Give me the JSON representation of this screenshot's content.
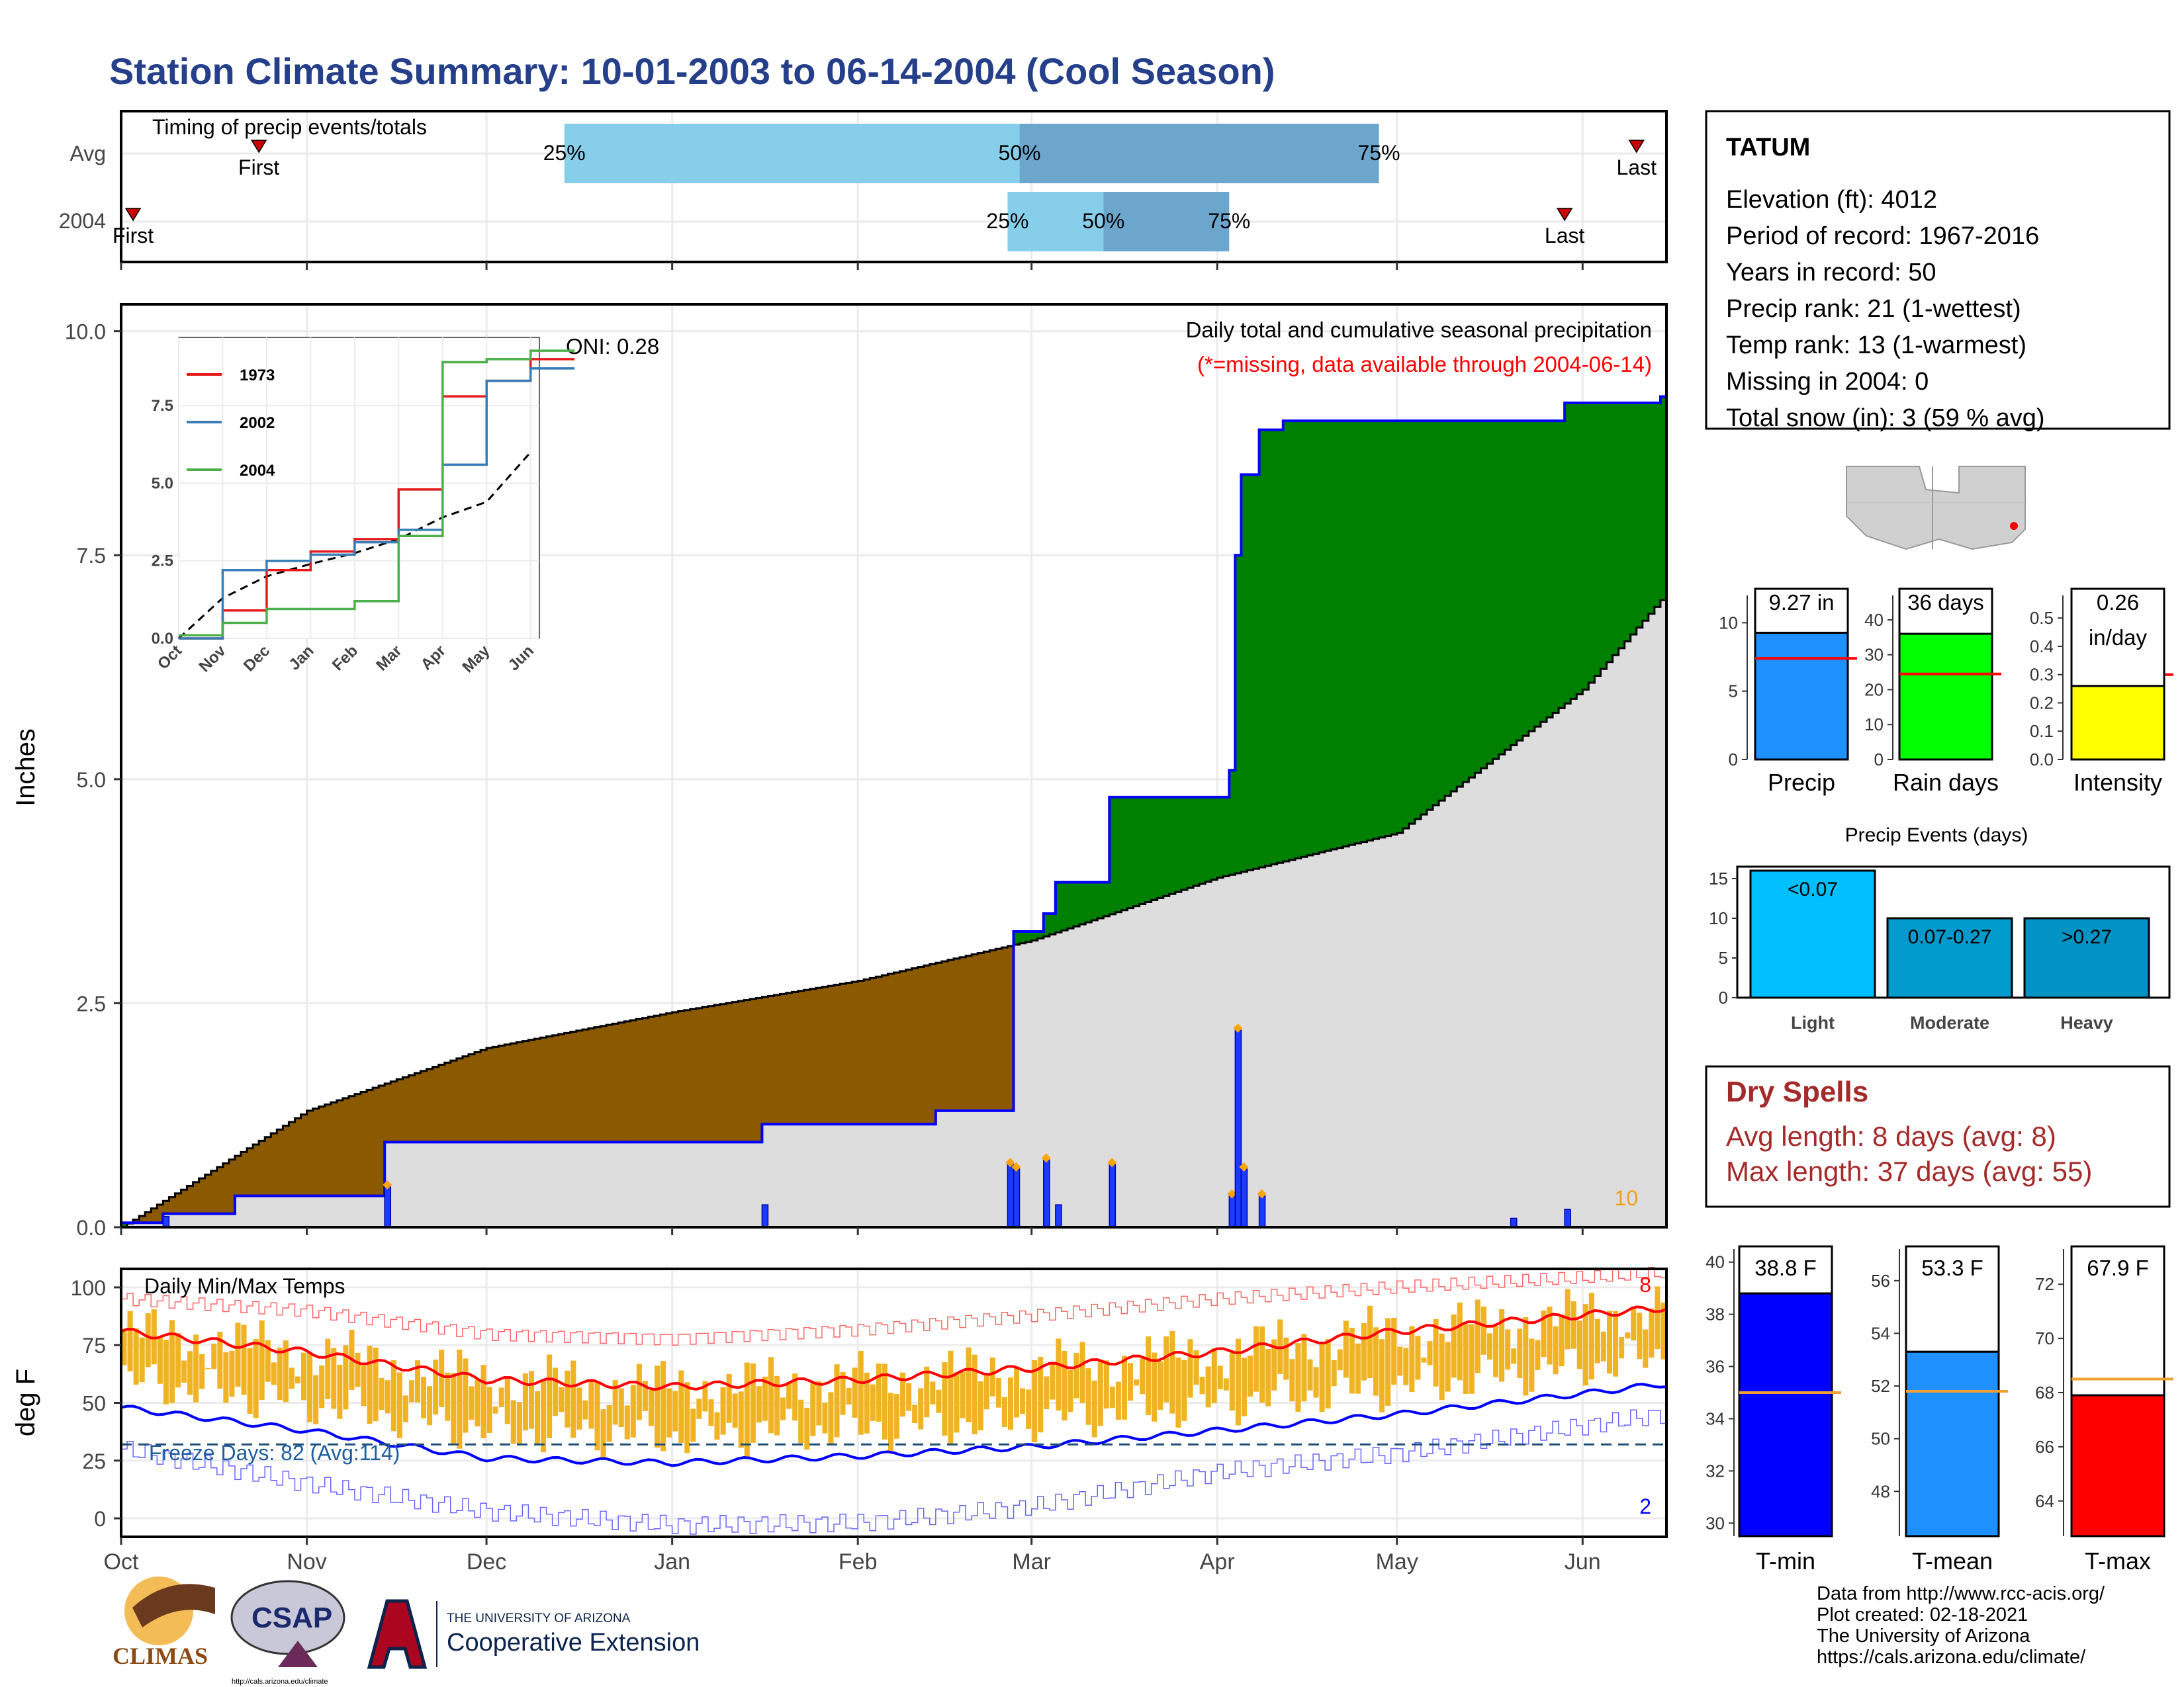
{
  "title": "Station Climate Summary: 10-01-2003 to 06-14-2004 (Cool Season)",
  "colors": {
    "title": "#253f8a",
    "green": "#008000",
    "brown": "#8b5a00",
    "grey": "#dddddd",
    "blueline": "#0000ff",
    "orange": "#f0b323",
    "red": "#ff0000"
  },
  "timing": {
    "label": "Timing of precip events/totals",
    "rows": [
      "Avg",
      "2004"
    ],
    "avg": {
      "first_label": "First",
      "last_label": "Last",
      "first": "Oct 24",
      "p25": "Dec 14",
      "p50": "Feb 28",
      "p75": "Apr 28",
      "last": "Jun 10"
    },
    "year": {
      "first_label": "First",
      "last_label": "Last",
      "first": "Oct 3",
      "p25": "Feb 26",
      "p50": "Mar 13",
      "p75": "Apr 3",
      "last": "May 29"
    },
    "pct_labels": [
      "25%",
      "50%",
      "75%"
    ]
  },
  "main": {
    "ylabel": "Inches",
    "header": "Daily total and cumulative seasonal precipitation",
    "missing_note": "(*=missing, data available through 2004-06-14)",
    "oni": "ONI: 0.28",
    "corner_count": "10",
    "month_ticks": [
      "Oct",
      "Nov",
      "Dec",
      "Jan",
      "Feb",
      "Mar",
      "Apr",
      "May",
      "Jun"
    ],
    "y_ticks": [
      "0.0",
      "2.5",
      "5.0",
      "7.5",
      "10.0"
    ]
  },
  "inset": {
    "legend": [
      {
        "name": "1973",
        "color": "#e41a1c"
      },
      {
        "name": "2002",
        "color": "#377eb8"
      },
      {
        "name": "2004",
        "color": "#4daf4a"
      }
    ],
    "y_ticks": [
      "0.0",
      "2.5",
      "5.0",
      "7.5"
    ],
    "x_ticks": [
      "Oct",
      "Nov",
      "Dec",
      "Jan",
      "Feb",
      "Mar",
      "Apr",
      "May",
      "Jun"
    ]
  },
  "temps": {
    "label": "Daily Min/Max Temps",
    "ylabel": "deg F",
    "freeze_label": "Freeze Days: 82 (Avg:114)",
    "freeze_value": 32,
    "max_count": "8",
    "min_count": "2",
    "y_ticks": [
      "0",
      "25",
      "50",
      "75",
      "100"
    ]
  },
  "station": {
    "name": "TATUM",
    "elevation": "Elevation (ft): 4012",
    "period": "Period of record: 1967-2016",
    "years": "Years in record: 50",
    "precip_rank": "Precip rank: 21 (1-wettest)",
    "temp_rank": "Temp rank: 13 (1-warmest)",
    "missing": "Missing in 2004: 0",
    "snow": "Total snow (in): 3 (59 % avg)"
  },
  "mini_bars": [
    {
      "label": "Precip",
      "value_text": "9.27 in",
      "value": 9.27,
      "avg": 7.4,
      "color": "#1e90ff",
      "ymax": 12,
      "ticks": [
        0,
        5,
        10
      ]
    },
    {
      "label": "Rain days",
      "value_text": "36 days",
      "value": 36,
      "avg": 24.5,
      "color": "#00ff00",
      "ymax": 47,
      "ticks": [
        0,
        10,
        20,
        30,
        40
      ]
    },
    {
      "label": "Intensity",
      "value_text": "0.26",
      "value_text2": "in/day",
      "value": 0.26,
      "avg": 0.3,
      "color": "#ffff00",
      "ymax": 0.58,
      "ticks": [
        0.0,
        0.1,
        0.2,
        0.3,
        0.4,
        0.5
      ]
    }
  ],
  "events": {
    "title": "Precip Events (days)",
    "bars": [
      {
        "label": "Light",
        "range": "<0.07",
        "value": 16,
        "color": "#00bfff"
      },
      {
        "label": "Moderate",
        "range": "0.07-0.27",
        "value": 10,
        "color": "#009acd"
      },
      {
        "label": "Heavy",
        "range": ">0.27",
        "value": 10,
        "color": "#0093c4"
      }
    ],
    "ticks": [
      0,
      5,
      10,
      15
    ]
  },
  "dry": {
    "title": "Dry Spells",
    "avg_line": "Avg length: 8 days (avg: 8)",
    "max_line": "Max length: 37 days (avg: 55)"
  },
  "temp_bars": [
    {
      "label": "T-min",
      "value_text": "38.8 F",
      "value": 38.8,
      "avg": 35,
      "color": "#0000ff",
      "ymin": 29.5,
      "ymax": 40.5,
      "ticks": [
        30,
        32,
        34,
        36,
        38,
        40
      ]
    },
    {
      "label": "T-mean",
      "value_text": "53.3 F",
      "value": 53.3,
      "avg": 51.8,
      "color": "#1e90ff",
      "ymin": 46.3,
      "ymax": 57.2,
      "ticks": [
        48,
        50,
        52,
        54,
        56
      ]
    },
    {
      "label": "T-max",
      "value_text": "67.9 F",
      "value": 67.9,
      "avg": 68.5,
      "color": "#ff0000",
      "ymin": 62.7,
      "ymax": 73.3,
      "ticks": [
        64,
        66,
        68,
        70,
        72
      ]
    }
  ],
  "credits": [
    "Data from http://www.rcc-acis.org/",
    "Plot created: 02-18-2021",
    "The University of Arizona",
    "https://cals.arizona.edu/climate/"
  ],
  "logos": {
    "climas": "CLIMAS",
    "csap": "CSAP",
    "csap_url": "http://cals.arizona.edu/climate",
    "ua_top": "THE UNIVERSITY OF ARIZONA",
    "ua_bottom": "Cooperative Extension"
  },
  "chart_data": [
    {
      "type": "area",
      "title": "Daily total and cumulative seasonal precipitation",
      "ylabel": "Inches",
      "ylim": [
        0,
        10.0
      ],
      "xlim": [
        "Oct 1",
        "Jun 14"
      ],
      "series": [
        {
          "name": "2004 cumulative",
          "x": [
            "Oct 1",
            "Oct 8",
            "Oct 20",
            "Nov 14",
            "Jan 16",
            "Feb 14",
            "Feb 27",
            "Mar 3",
            "Mar 5",
            "Mar 14",
            "Apr 3",
            "Apr 4",
            "Apr 5",
            "Apr 8",
            "Apr 12",
            "May 20",
            "May 29",
            "Jun 14"
          ],
          "y": [
            0.05,
            0.15,
            0.35,
            0.95,
            1.15,
            1.3,
            3.3,
            3.5,
            3.85,
            4.8,
            5.1,
            7.5,
            8.4,
            8.9,
            9.0,
            9.0,
            9.2,
            9.27
          ]
        },
        {
          "name": "Average cumulative",
          "x": [
            "Oct 1",
            "Nov 1",
            "Dec 1",
            "Jan 1",
            "Feb 1",
            "Mar 1",
            "Apr 1",
            "May 1",
            "Jun 1",
            "Jun 14"
          ],
          "y": [
            0.0,
            1.3,
            2.0,
            2.4,
            2.75,
            3.2,
            3.9,
            4.4,
            6.0,
            7.0
          ]
        }
      ]
    },
    {
      "type": "bar",
      "title": "Daily precipitation",
      "x": [
        "Oct 8",
        "Nov 14",
        "Jan 16",
        "Feb 26",
        "Feb 27",
        "Mar 3",
        "Mar 5",
        "Mar 14",
        "Apr 3",
        "Apr 4",
        "Apr 5",
        "Apr 8",
        "May 20",
        "May 29"
      ],
      "values": [
        0.12,
        0.45,
        0.25,
        0.7,
        0.65,
        0.75,
        0.25,
        0.7,
        0.35,
        2.2,
        0.65,
        0.35,
        0.1,
        0.2
      ]
    },
    {
      "type": "line",
      "title": "Daily Min/Max Temps",
      "ylabel": "deg F",
      "ylim": [
        -8,
        108
      ],
      "series": [
        {
          "name": "Normal max",
          "x": [
            "Oct 1",
            "Nov 1",
            "Dec 1",
            "Jan 1",
            "Feb 1",
            "Mar 1",
            "Apr 1",
            "May 1",
            "Jun 1",
            "Jun 14"
          ],
          "y": [
            81,
            72,
            60,
            57,
            60,
            65,
            72,
            81,
            88,
            91
          ]
        },
        {
          "name": "Normal min",
          "x": [
            "Oct 1",
            "Nov 1",
            "Dec 1",
            "Jan 1",
            "Feb 1",
            "Mar 1",
            "Apr 1",
            "May 1",
            "Jun 1",
            "Jun 14"
          ],
          "y": [
            48,
            38,
            26,
            24,
            27,
            31,
            38,
            45,
            54,
            58
          ]
        },
        {
          "name": "Record max",
          "x": [
            "Oct 1",
            "Nov 1",
            "Dec 1",
            "Jan 1",
            "Feb 1",
            "Mar 1",
            "Apr 1",
            "May 1",
            "Jun 1",
            "Jun 14"
          ],
          "y": [
            95,
            90,
            80,
            78,
            82,
            88,
            95,
            100,
            104,
            106
          ]
        },
        {
          "name": "Record min",
          "x": [
            "Oct 1",
            "Nov 1",
            "Dec 1",
            "Jan 1",
            "Feb 1",
            "Mar 1",
            "Apr 1",
            "May 1",
            "Jun 1",
            "Jun 14"
          ],
          "y": [
            30,
            15,
            3,
            -3,
            -2,
            5,
            20,
            28,
            40,
            45
          ]
        }
      ]
    },
    {
      "type": "line",
      "title": "",
      "series": [
        {
          "name": "1973",
          "x": [
            "Oct",
            "Nov",
            "Dec",
            "Jan",
            "Feb",
            "Mar",
            "Apr",
            "May",
            "Jun"
          ],
          "y": [
            0.0,
            0.9,
            2.2,
            2.8,
            3.2,
            4.8,
            7.8,
            8.3,
            9.0
          ]
        },
        {
          "name": "2002",
          "x": [
            "Oct",
            "Nov",
            "Dec",
            "Jan",
            "Feb",
            "Mar",
            "Apr",
            "May",
            "Jun"
          ],
          "y": [
            0.0,
            2.2,
            2.5,
            2.7,
            3.1,
            3.5,
            5.6,
            8.3,
            8.7
          ]
        },
        {
          "name": "2004",
          "x": [
            "Oct",
            "Nov",
            "Dec",
            "Jan",
            "Feb",
            "Mar",
            "Apr",
            "May",
            "Jun"
          ],
          "y": [
            0.1,
            0.5,
            0.95,
            0.95,
            1.2,
            3.3,
            8.9,
            9.0,
            9.27
          ]
        }
      ]
    }
  ]
}
